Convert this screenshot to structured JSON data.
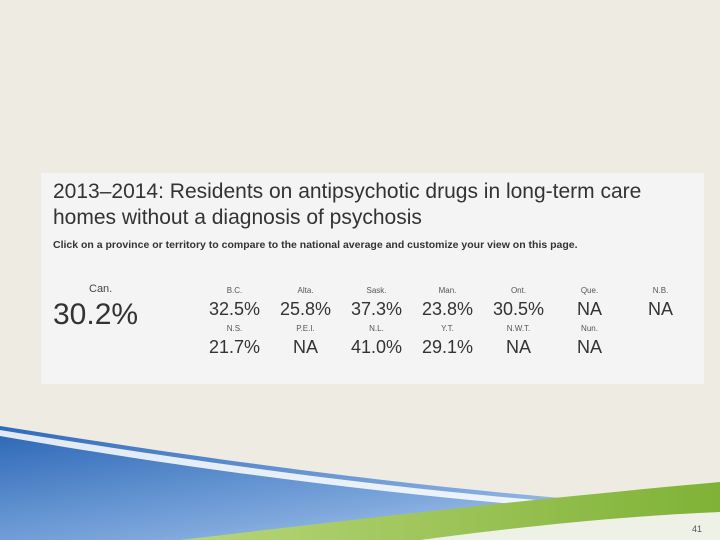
{
  "card": {
    "title": "2013–2014: Residents on antipsychotic drugs in long-term care homes without a diagnosis of psychosis",
    "subtitle": "Click on a province or territory to compare to the national average and customize your view on this page."
  },
  "national": {
    "label": "Can.",
    "value": "30.2%"
  },
  "regions": [
    {
      "code": "B.C.",
      "value": "32.5%"
    },
    {
      "code": "Alta.",
      "value": "25.8%"
    },
    {
      "code": "Sask.",
      "value": "37.3%"
    },
    {
      "code": "Man.",
      "value": "23.8%"
    },
    {
      "code": "Ont.",
      "value": "30.5%"
    },
    {
      "code": "Que.",
      "value": "NA"
    },
    {
      "code": "N.B.",
      "value": "NA"
    },
    {
      "code": "N.S.",
      "value": "21.7%"
    },
    {
      "code": "P.E.I.",
      "value": "NA"
    },
    {
      "code": "N.L.",
      "value": "41.0%"
    },
    {
      "code": "Y.T.",
      "value": "29.1%"
    },
    {
      "code": "N.W.T.",
      "value": "NA"
    },
    {
      "code": "Nun.",
      "value": "NA"
    }
  ],
  "slide_number": "41",
  "colors": {
    "background": "#eeebe2",
    "panel": "#f4f4f4",
    "wave_blue": "#5b8fd0",
    "wave_green": "#8dba3c"
  }
}
